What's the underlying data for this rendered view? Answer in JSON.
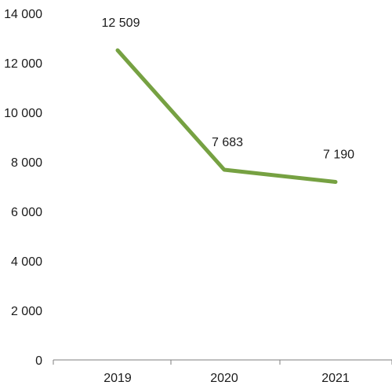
{
  "chart_data": {
    "type": "line",
    "x": [
      "2019",
      "2020",
      "2021"
    ],
    "series": [
      {
        "values": [
          12509,
          7683,
          7190
        ],
        "labels": [
          "12 509",
          "7 683",
          "7 190"
        ],
        "color": "#76a142"
      }
    ],
    "yticks": [
      0,
      2000,
      4000,
      6000,
      8000,
      10000,
      12000,
      14000
    ],
    "ytick_labels": [
      "0",
      "2 000",
      "4 000",
      "6 000",
      "8 000",
      "10 000",
      "12 000",
      "14 000"
    ],
    "ylim": [
      0,
      14000
    ],
    "grid": false,
    "axis_color": "#7f7f7f"
  }
}
